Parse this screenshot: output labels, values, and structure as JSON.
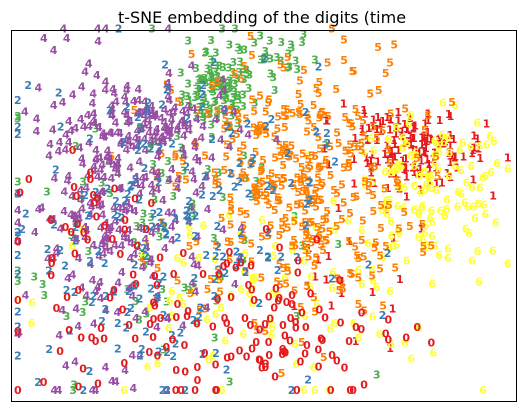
{
  "chart_data": {
    "type": "scatter",
    "title": "t-SNE embedding of the digits (time",
    "xlabel": "",
    "ylabel": "",
    "axis_ticks": "none",
    "grid": false,
    "legend": "none",
    "xlim": [
      0,
      1
    ],
    "ylim": [
      0,
      1
    ],
    "marker": "digit glyphs (text labels)",
    "classes": [
      {
        "label": "0",
        "color": "#e41a1c"
      },
      {
        "label": "1",
        "color": "#e41a1c"
      },
      {
        "label": "2",
        "color": "#377eb8"
      },
      {
        "label": "3",
        "color": "#4daf4a"
      },
      {
        "label": "4",
        "color": "#984ea3"
      },
      {
        "label": "5",
        "color": "#ff7f00"
      },
      {
        "label": "6",
        "color": "#ffff33"
      }
    ],
    "clusters": [
      {
        "label": "3",
        "cx": 0.4,
        "cy": 0.82,
        "sx": 0.035,
        "sy": 0.045,
        "n": 90
      },
      {
        "label": "3",
        "cx": 0.48,
        "cy": 0.92,
        "sx": 0.06,
        "sy": 0.04,
        "n": 40
      },
      {
        "label": "3",
        "cx": 0.28,
        "cy": 0.5,
        "sx": 0.16,
        "sy": 0.22,
        "n": 90
      },
      {
        "label": "1",
        "cx": 0.8,
        "cy": 0.66,
        "sx": 0.065,
        "sy": 0.045,
        "n": 120
      },
      {
        "label": "1",
        "cx": 0.72,
        "cy": 0.75,
        "sx": 0.05,
        "sy": 0.05,
        "n": 25
      },
      {
        "label": "1",
        "cx": 0.66,
        "cy": 0.3,
        "sx": 0.09,
        "sy": 0.1,
        "n": 20
      },
      {
        "label": "6",
        "cx": 0.82,
        "cy": 0.55,
        "sx": 0.085,
        "sy": 0.1,
        "n": 140
      },
      {
        "label": "6",
        "cx": 0.45,
        "cy": 0.25,
        "sx": 0.2,
        "sy": 0.14,
        "n": 90
      },
      {
        "label": "5",
        "cx": 0.55,
        "cy": 0.58,
        "sx": 0.12,
        "sy": 0.18,
        "n": 380
      },
      {
        "label": "4",
        "cx": 0.2,
        "cy": 0.52,
        "sx": 0.09,
        "sy": 0.2,
        "n": 280
      },
      {
        "label": "4",
        "cx": 0.28,
        "cy": 0.72,
        "sx": 0.08,
        "sy": 0.06,
        "n": 100
      },
      {
        "label": "2",
        "cx": 0.28,
        "cy": 0.45,
        "sx": 0.16,
        "sy": 0.22,
        "n": 200
      },
      {
        "label": "0",
        "cx": 0.42,
        "cy": 0.2,
        "sx": 0.18,
        "sy": 0.12,
        "n": 150
      },
      {
        "label": "0",
        "cx": 0.15,
        "cy": 0.5,
        "sx": 0.07,
        "sy": 0.1,
        "n": 30
      }
    ]
  }
}
